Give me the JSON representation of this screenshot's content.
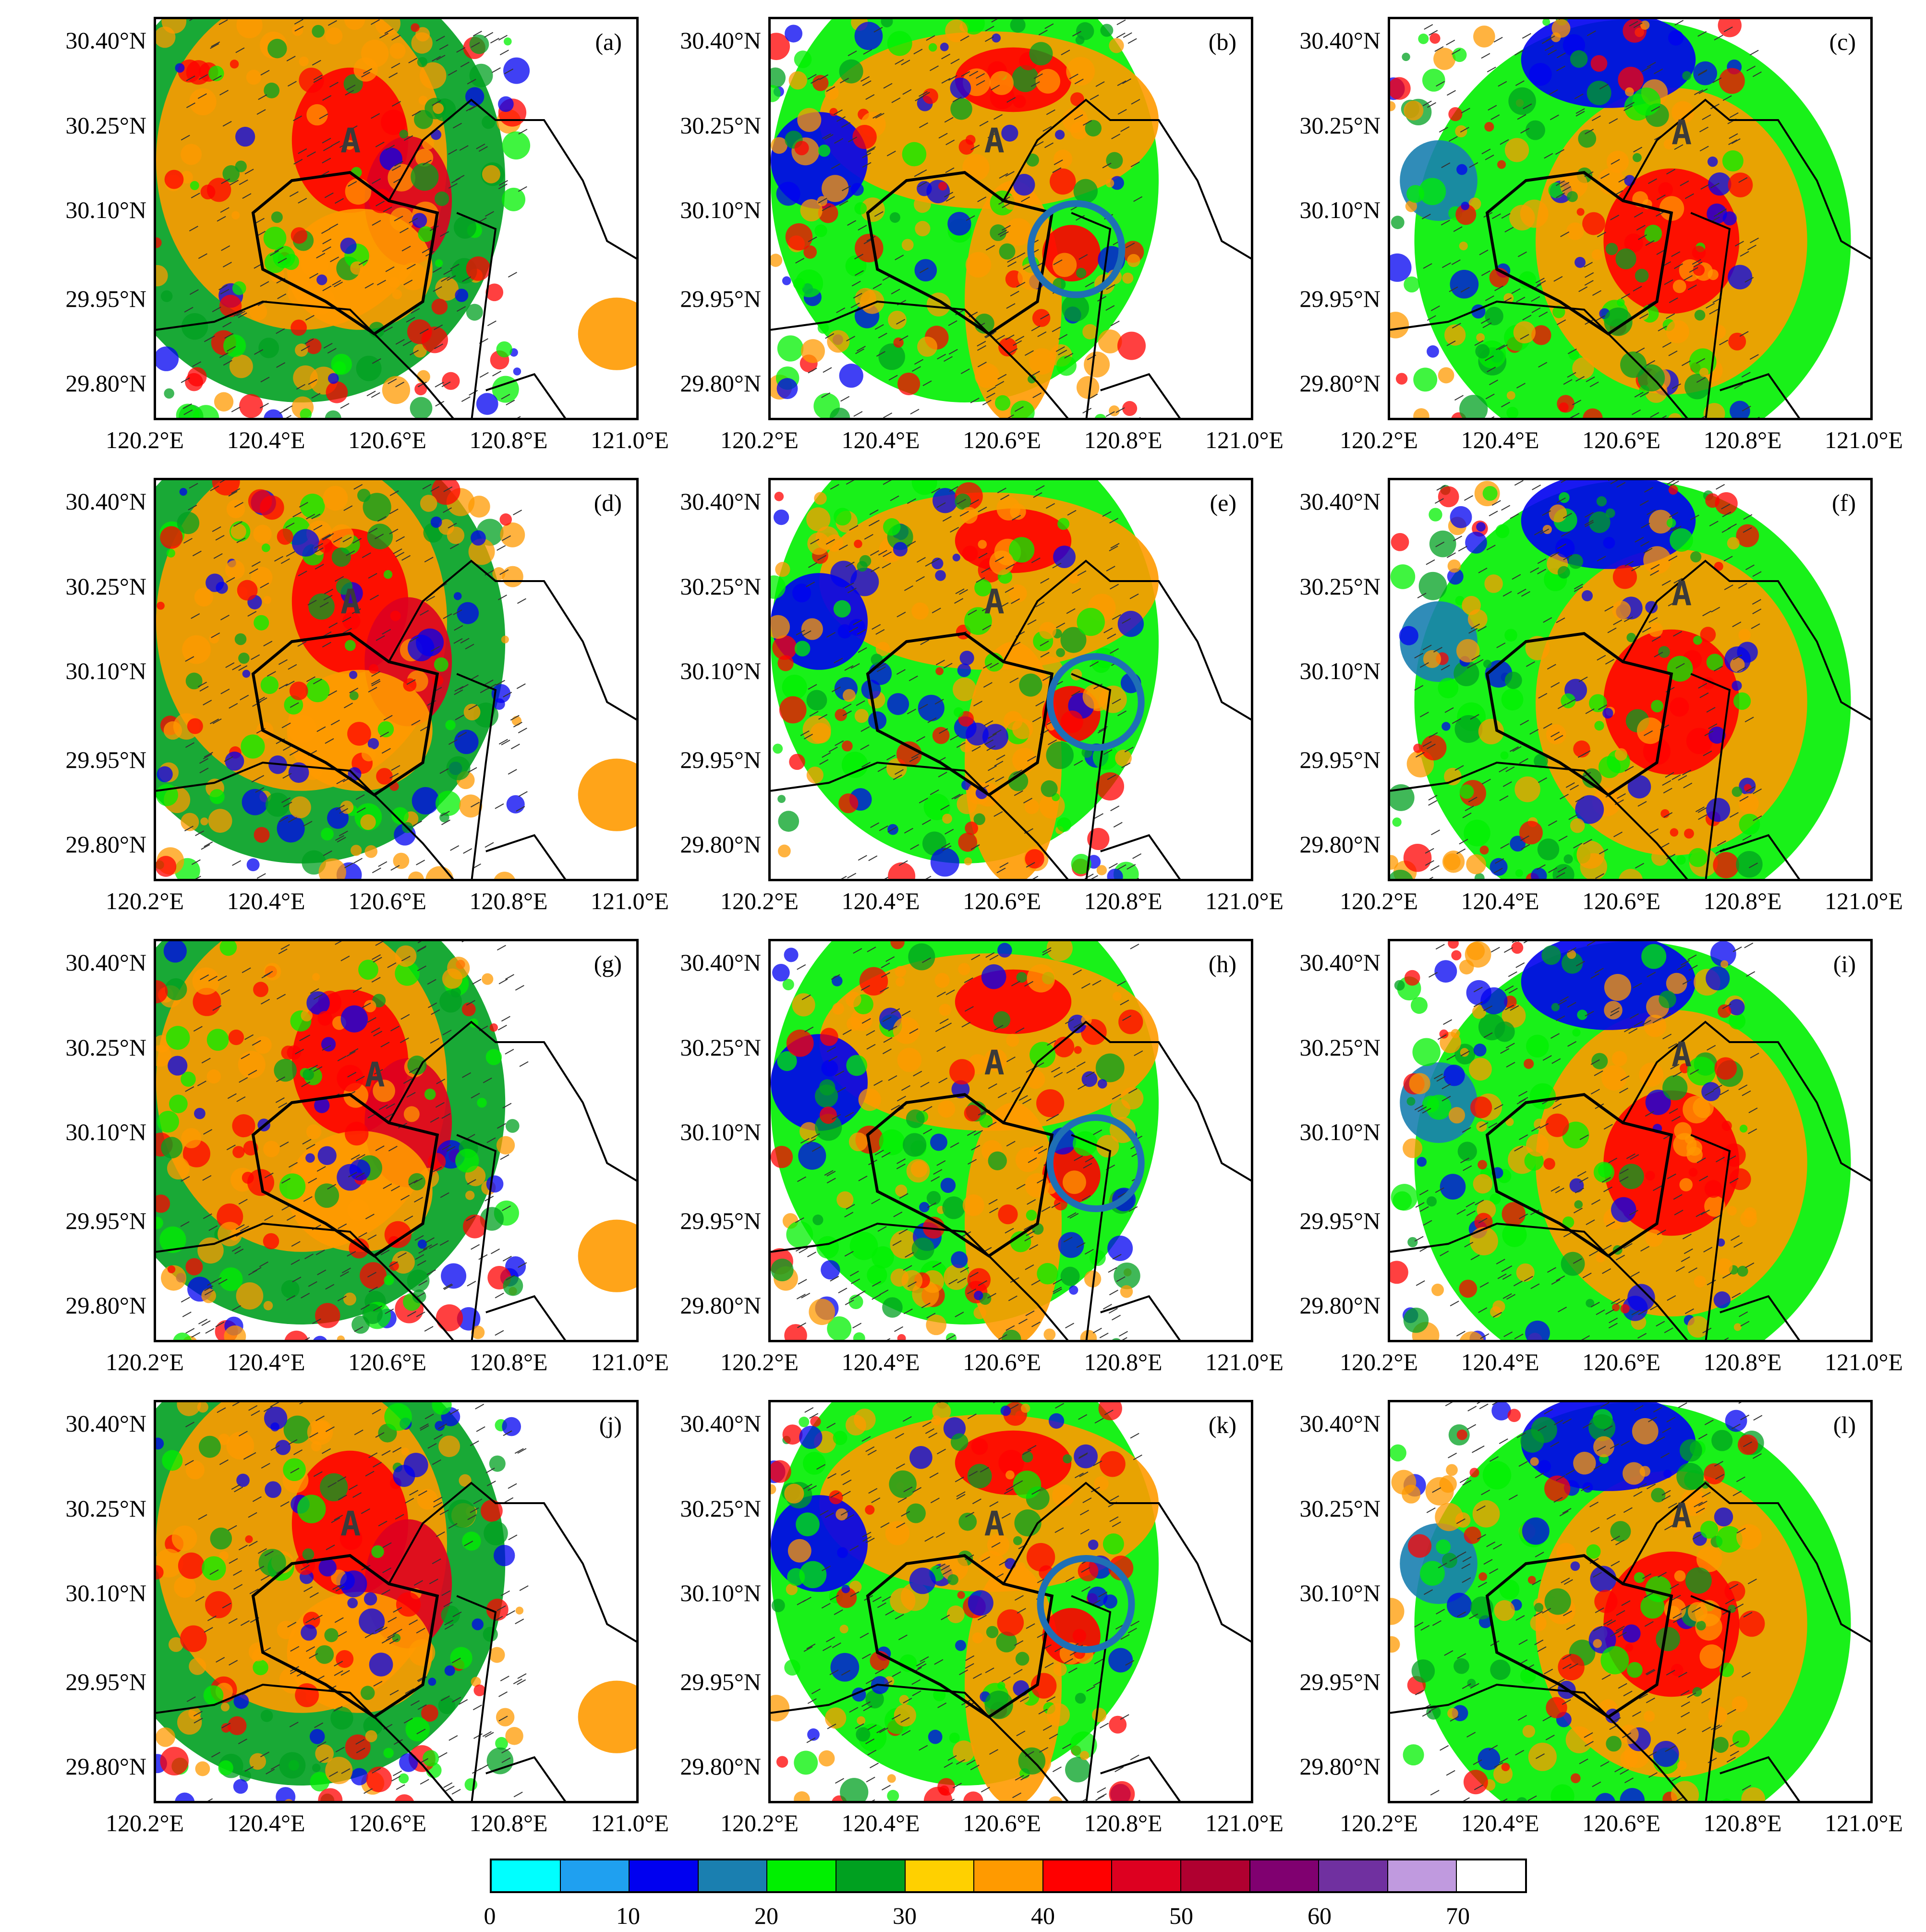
{
  "panels": [
    {
      "id": "a",
      "label": "(a)",
      "anchor_label": "A",
      "circled": false
    },
    {
      "id": "b",
      "label": "(b)",
      "anchor_label": "A",
      "circled": true
    },
    {
      "id": "c",
      "label": "(c)",
      "anchor_label": "A",
      "circled": false
    },
    {
      "id": "d",
      "label": "(d)",
      "anchor_label": "A",
      "circled": false
    },
    {
      "id": "e",
      "label": "(e)",
      "anchor_label": "A",
      "circled": true
    },
    {
      "id": "f",
      "label": "(f)",
      "anchor_label": "A",
      "circled": false
    },
    {
      "id": "g",
      "label": "(g)",
      "anchor_label": "A",
      "circled": false
    },
    {
      "id": "h",
      "label": "(h)",
      "anchor_label": "A",
      "circled": true
    },
    {
      "id": "i",
      "label": "(i)",
      "anchor_label": "A",
      "circled": false
    },
    {
      "id": "j",
      "label": "(j)",
      "anchor_label": "A",
      "circled": false
    },
    {
      "id": "k",
      "label": "(k)",
      "anchor_label": "A",
      "circled": true
    },
    {
      "id": "l",
      "label": "(l)",
      "anchor_label": "A",
      "circled": false
    }
  ],
  "axes": {
    "y_ticks": [
      "30.40°N",
      "30.25°N",
      "30.10°N",
      "29.95°N",
      "29.80°N"
    ],
    "x_ticks": [
      "120.2°E",
      "120.4°E",
      "120.6°E",
      "120.8°E",
      "121.0°E"
    ]
  },
  "colorbar": {
    "colors": [
      "#00ffff",
      "#1fa0f0",
      "#0000f0",
      "#1a7fb0",
      "#00f000",
      "#00a020",
      "#ffd000",
      "#ff9a00",
      "#ff0000",
      "#dd0020",
      "#b00030",
      "#800070",
      "#7030a0",
      "#c09adf",
      "#ffffff"
    ],
    "tick_labels": [
      "0",
      "10",
      "20",
      "30",
      "40",
      "50",
      "60",
      "70"
    ],
    "tick_values": [
      0,
      10,
      20,
      30,
      40,
      50,
      60,
      70
    ],
    "range": [
      0,
      75
    ]
  },
  "highlight_circle_color": "#1f6fb5"
}
